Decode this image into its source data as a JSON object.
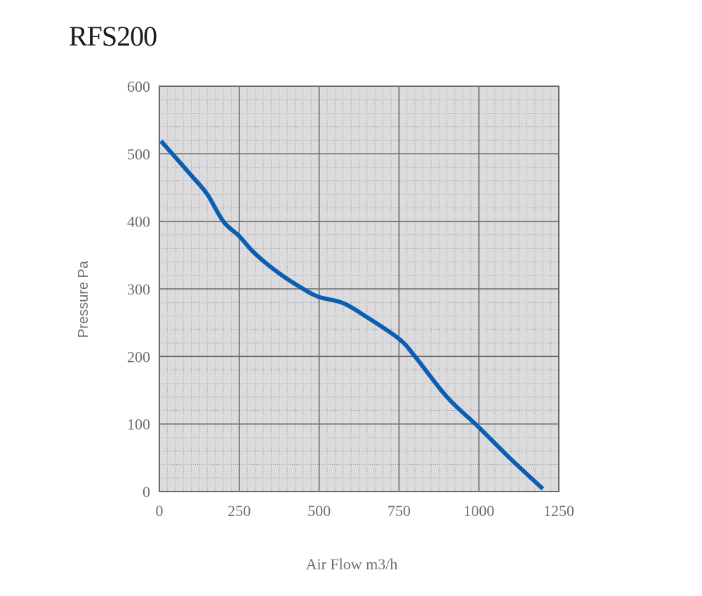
{
  "title": "RFS200",
  "chart_data": {
    "type": "line",
    "title": "RFS200",
    "xlabel": "Air Flow m3/h",
    "ylabel": "Pressure Pa",
    "xlim": [
      0,
      1250
    ],
    "ylim": [
      0,
      600
    ],
    "x_ticks": [
      0,
      250,
      500,
      750,
      1000,
      1250
    ],
    "x_tick_labels": [
      "0",
      "250",
      "500",
      "750",
      "1000",
      "1250"
    ],
    "y_ticks": [
      0,
      100,
      200,
      300,
      400,
      500,
      600
    ],
    "y_tick_labels": [
      "0",
      "100",
      "200",
      "300",
      "400",
      "500",
      "600"
    ],
    "grid": true,
    "minor_grid": {
      "x_subdivisions": 10,
      "y_subdivisions": 5
    },
    "legend": null,
    "series": [
      {
        "name": "RFS200",
        "color": "#0a5fb4",
        "x": [
          5,
          100,
          150,
          200,
          250,
          300,
          375,
          450,
          500,
          575,
          650,
          750,
          800,
          900,
          1000,
          1100,
          1200
        ],
        "y": [
          519,
          468,
          440,
          400,
          378,
          352,
          323,
          300,
          288,
          279,
          258,
          226,
          200,
          140,
          95,
          48,
          4
        ]
      }
    ]
  },
  "style": {
    "plot_bg": "#dcdcde",
    "major_grid": "#6a6a6e",
    "minor_grid": "#9a9a9e",
    "curve": "#0a5fb4",
    "text": "#6e6e72"
  }
}
